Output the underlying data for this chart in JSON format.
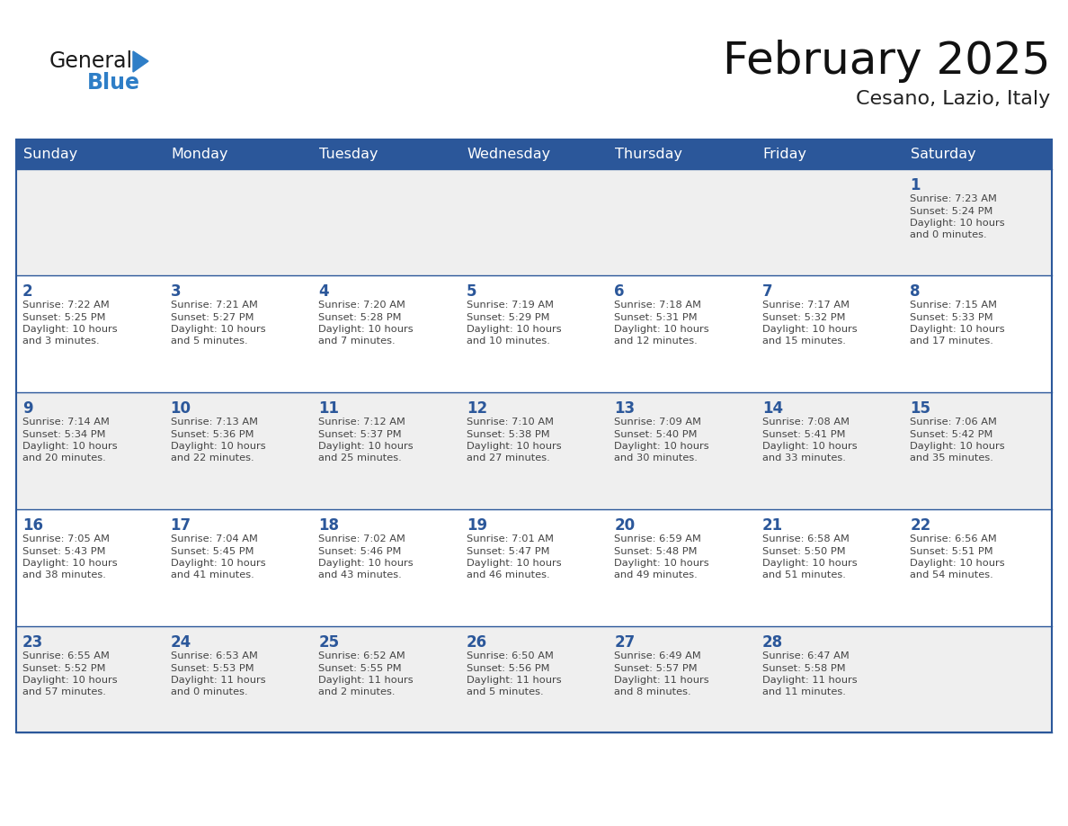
{
  "title": "February 2025",
  "subtitle": "Cesano, Lazio, Italy",
  "header_bg": "#2B579A",
  "header_text_color": "#FFFFFF",
  "day_names": [
    "Sunday",
    "Monday",
    "Tuesday",
    "Wednesday",
    "Thursday",
    "Friday",
    "Saturday"
  ],
  "bg_color": "#FFFFFF",
  "cell_bg_gray": "#EFEFEF",
  "cell_bg_white": "#FFFFFF",
  "border_color": "#2B579A",
  "number_color": "#2B579A",
  "text_color": "#444444",
  "logo_general_color": "#1A1A1A",
  "logo_blue_color": "#2E7EC7",
  "logo_triangle_color": "#2E7EC7",
  "calendar_data": [
    [
      null,
      null,
      null,
      null,
      null,
      null,
      {
        "day": 1,
        "sunrise": "7:23 AM",
        "sunset": "5:24 PM",
        "daylight_line1": "10 hours",
        "daylight_line2": "and 0 minutes."
      }
    ],
    [
      {
        "day": 2,
        "sunrise": "7:22 AM",
        "sunset": "5:25 PM",
        "daylight_line1": "10 hours",
        "daylight_line2": "and 3 minutes."
      },
      {
        "day": 3,
        "sunrise": "7:21 AM",
        "sunset": "5:27 PM",
        "daylight_line1": "10 hours",
        "daylight_line2": "and 5 minutes."
      },
      {
        "day": 4,
        "sunrise": "7:20 AM",
        "sunset": "5:28 PM",
        "daylight_line1": "10 hours",
        "daylight_line2": "and 7 minutes."
      },
      {
        "day": 5,
        "sunrise": "7:19 AM",
        "sunset": "5:29 PM",
        "daylight_line1": "10 hours",
        "daylight_line2": "and 10 minutes."
      },
      {
        "day": 6,
        "sunrise": "7:18 AM",
        "sunset": "5:31 PM",
        "daylight_line1": "10 hours",
        "daylight_line2": "and 12 minutes."
      },
      {
        "day": 7,
        "sunrise": "7:17 AM",
        "sunset": "5:32 PM",
        "daylight_line1": "10 hours",
        "daylight_line2": "and 15 minutes."
      },
      {
        "day": 8,
        "sunrise": "7:15 AM",
        "sunset": "5:33 PM",
        "daylight_line1": "10 hours",
        "daylight_line2": "and 17 minutes."
      }
    ],
    [
      {
        "day": 9,
        "sunrise": "7:14 AM",
        "sunset": "5:34 PM",
        "daylight_line1": "10 hours",
        "daylight_line2": "and 20 minutes."
      },
      {
        "day": 10,
        "sunrise": "7:13 AM",
        "sunset": "5:36 PM",
        "daylight_line1": "10 hours",
        "daylight_line2": "and 22 minutes."
      },
      {
        "day": 11,
        "sunrise": "7:12 AM",
        "sunset": "5:37 PM",
        "daylight_line1": "10 hours",
        "daylight_line2": "and 25 minutes."
      },
      {
        "day": 12,
        "sunrise": "7:10 AM",
        "sunset": "5:38 PM",
        "daylight_line1": "10 hours",
        "daylight_line2": "and 27 minutes."
      },
      {
        "day": 13,
        "sunrise": "7:09 AM",
        "sunset": "5:40 PM",
        "daylight_line1": "10 hours",
        "daylight_line2": "and 30 minutes."
      },
      {
        "day": 14,
        "sunrise": "7:08 AM",
        "sunset": "5:41 PM",
        "daylight_line1": "10 hours",
        "daylight_line2": "and 33 minutes."
      },
      {
        "day": 15,
        "sunrise": "7:06 AM",
        "sunset": "5:42 PM",
        "daylight_line1": "10 hours",
        "daylight_line2": "and 35 minutes."
      }
    ],
    [
      {
        "day": 16,
        "sunrise": "7:05 AM",
        "sunset": "5:43 PM",
        "daylight_line1": "10 hours",
        "daylight_line2": "and 38 minutes."
      },
      {
        "day": 17,
        "sunrise": "7:04 AM",
        "sunset": "5:45 PM",
        "daylight_line1": "10 hours",
        "daylight_line2": "and 41 minutes."
      },
      {
        "day": 18,
        "sunrise": "7:02 AM",
        "sunset": "5:46 PM",
        "daylight_line1": "10 hours",
        "daylight_line2": "and 43 minutes."
      },
      {
        "day": 19,
        "sunrise": "7:01 AM",
        "sunset": "5:47 PM",
        "daylight_line1": "10 hours",
        "daylight_line2": "and 46 minutes."
      },
      {
        "day": 20,
        "sunrise": "6:59 AM",
        "sunset": "5:48 PM",
        "daylight_line1": "10 hours",
        "daylight_line2": "and 49 minutes."
      },
      {
        "day": 21,
        "sunrise": "6:58 AM",
        "sunset": "5:50 PM",
        "daylight_line1": "10 hours",
        "daylight_line2": "and 51 minutes."
      },
      {
        "day": 22,
        "sunrise": "6:56 AM",
        "sunset": "5:51 PM",
        "daylight_line1": "10 hours",
        "daylight_line2": "and 54 minutes."
      }
    ],
    [
      {
        "day": 23,
        "sunrise": "6:55 AM",
        "sunset": "5:52 PM",
        "daylight_line1": "10 hours",
        "daylight_line2": "and 57 minutes."
      },
      {
        "day": 24,
        "sunrise": "6:53 AM",
        "sunset": "5:53 PM",
        "daylight_line1": "11 hours",
        "daylight_line2": "and 0 minutes."
      },
      {
        "day": 25,
        "sunrise": "6:52 AM",
        "sunset": "5:55 PM",
        "daylight_line1": "11 hours",
        "daylight_line2": "and 2 minutes."
      },
      {
        "day": 26,
        "sunrise": "6:50 AM",
        "sunset": "5:56 PM",
        "daylight_line1": "11 hours",
        "daylight_line2": "and 5 minutes."
      },
      {
        "day": 27,
        "sunrise": "6:49 AM",
        "sunset": "5:57 PM",
        "daylight_line1": "11 hours",
        "daylight_line2": "and 8 minutes."
      },
      {
        "day": 28,
        "sunrise": "6:47 AM",
        "sunset": "5:58 PM",
        "daylight_line1": "11 hours",
        "daylight_line2": "and 11 minutes."
      },
      null
    ]
  ],
  "row_bg_pattern": [
    "gray",
    "white",
    "gray",
    "white",
    "gray"
  ]
}
